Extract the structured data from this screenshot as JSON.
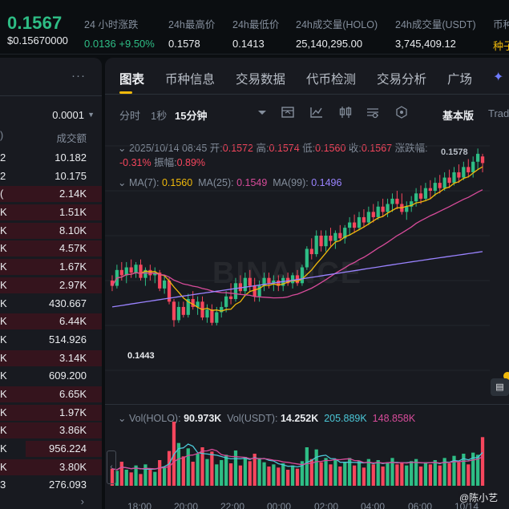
{
  "ticker": {
    "last_price": "0.1567",
    "last_price_usd": "$0.15670000",
    "change_label": "24 小时涨跌",
    "change_value": "0.0136",
    "change_pct": "+9.50%",
    "high_label": "24h最高价",
    "high_value": "0.1578",
    "low_label": "24h最低价",
    "low_value": "0.1413",
    "vol_base_label": "24h成交量(HOLO)",
    "vol_base_value": "25,140,295.00",
    "vol_quote_label": "24h成交量(USDT)",
    "vol_quote_value": "3,745,409.12",
    "seed_label": "币种",
    "seed_value": "种子"
  },
  "colors": {
    "up": "#2ebd85",
    "down": "#f6465d",
    "accent": "#f0b90b",
    "ma7": "#f0b90b",
    "ma25": "#d74b9a",
    "ma99": "#9a83ff",
    "vol_ma": "#4bc7d7"
  },
  "order_book": {
    "menu_icon": "more-dots-icon",
    "precision": "0.0001",
    "col_price": ")",
    "col_amount": "成交额",
    "rows": [
      {
        "p": "2",
        "q": "10.182",
        "side": "ask",
        "fill": 0
      },
      {
        "p": "2",
        "q": "10.175",
        "side": "ask",
        "fill": 0
      },
      {
        "p": "(",
        "q": "2.14K",
        "side": "ask",
        "fill": 1.0
      },
      {
        "p": "K",
        "q": "1.51K",
        "side": "ask",
        "fill": 1.0
      },
      {
        "p": "K",
        "q": "8.10K",
        "side": "ask",
        "fill": 1.0
      },
      {
        "p": "K",
        "q": "4.57K",
        "side": "ask",
        "fill": 1.0
      },
      {
        "p": "K",
        "q": "1.67K",
        "side": "ask",
        "fill": 1.0
      },
      {
        "p": "K",
        "q": "2.97K",
        "side": "ask",
        "fill": 1.0
      },
      {
        "p": "K",
        "q": "430.667",
        "side": "ask",
        "fill": 0.0
      },
      {
        "p": "K",
        "q": "6.44K",
        "side": "ask",
        "fill": 1.0
      },
      {
        "p": "K",
        "q": "514.926",
        "side": "ask",
        "fill": 0.0
      },
      {
        "p": "K",
        "q": "3.14K",
        "side": "ask",
        "fill": 1.0
      },
      {
        "p": "K",
        "q": "609.200",
        "side": "ask",
        "fill": 0.0
      },
      {
        "p": "K",
        "q": "6.65K",
        "side": "ask",
        "fill": 1.0
      },
      {
        "p": "K",
        "q": "1.97K",
        "side": "ask",
        "fill": 1.0
      },
      {
        "p": "K",
        "q": "3.86K",
        "side": "ask",
        "fill": 1.0
      },
      {
        "p": "K",
        "q": "956.224",
        "side": "ask",
        "fill": 0.75
      },
      {
        "p": "K",
        "q": "3.80K",
        "side": "ask",
        "fill": 1.0
      },
      {
        "p": "3",
        "q": "276.093",
        "side": "ask",
        "fill": 0.0
      }
    ]
  },
  "tabs": [
    {
      "label": "图表",
      "active": true
    },
    {
      "label": "币种信息",
      "active": false
    },
    {
      "label": "交易数据",
      "active": false
    },
    {
      "label": "代币检测",
      "active": false
    },
    {
      "label": "交易分析",
      "active": false
    },
    {
      "label": "广场",
      "active": false
    }
  ],
  "toolbar": {
    "time_label": "分时",
    "one_sec": "1秒",
    "interval": "15分钟",
    "basic": "基本版",
    "trading_view": "Trad",
    "icons": [
      "chevron-down-icon",
      "indicator-icon",
      "draw-line-icon",
      "candle-type-icon",
      "settings-sliders-icon",
      "hexagon-icon"
    ]
  },
  "ohlc": {
    "date": "2025/10/14 08:45",
    "open_label": "开:",
    "open": "0.1572",
    "high_label": "高:",
    "high": "0.1574",
    "low_label": "低:",
    "low": "0.1560",
    "close_label": "收:",
    "close": "0.1567",
    "change_label": "涨跌幅:",
    "change": "-0.31%",
    "amp_label": "振幅:",
    "amp": "0.89%"
  },
  "ma": {
    "ma7_label": "MA(7):",
    "ma7": "0.1560",
    "ma25_label": "MA(25):",
    "ma25": "0.1549",
    "ma99_label": "MA(99):",
    "ma99": "0.1496"
  },
  "volume": {
    "vol_base_label": "Vol(HOLO):",
    "vol_base": "90.973K",
    "vol_quote_label": "Vol(USDT):",
    "vol_quote": "14.252K",
    "ma5": "205.889K",
    "ma10": "148.858K"
  },
  "annotations": {
    "low": "0.1443",
    "high": "0.1578",
    "watermark": "BINANCE",
    "credit": "@陈小艺"
  },
  "time_axis": [
    "18:00",
    "20:00",
    "22:00",
    "00:00",
    "02:00",
    "04:00",
    "06:00",
    "10/14"
  ],
  "chart_data": {
    "type": "candlestick",
    "interval": "15m",
    "y_range": [
      0.141,
      0.158
    ],
    "candles": [
      [
        0.1478,
        0.1482,
        0.147,
        0.1474
      ],
      [
        0.1474,
        0.149,
        0.1472,
        0.1486
      ],
      [
        0.1486,
        0.1492,
        0.1478,
        0.1482
      ],
      [
        0.1482,
        0.1492,
        0.1476,
        0.1488
      ],
      [
        0.1488,
        0.1494,
        0.148,
        0.1484
      ],
      [
        0.1484,
        0.1492,
        0.148,
        0.149
      ],
      [
        0.149,
        0.1494,
        0.1478,
        0.148
      ],
      [
        0.148,
        0.1488,
        0.1474,
        0.1486
      ],
      [
        0.1486,
        0.149,
        0.1478,
        0.1482
      ],
      [
        0.1482,
        0.1488,
        0.1476,
        0.1484
      ],
      [
        0.1484,
        0.1486,
        0.147,
        0.1472
      ],
      [
        0.1472,
        0.1482,
        0.1468,
        0.1478
      ],
      [
        0.1478,
        0.148,
        0.146,
        0.1462
      ],
      [
        0.1462,
        0.1464,
        0.1443,
        0.1448
      ],
      [
        0.1448,
        0.1462,
        0.1446,
        0.1458
      ],
      [
        0.1458,
        0.1462,
        0.145,
        0.1452
      ],
      [
        0.1452,
        0.1468,
        0.145,
        0.1464
      ],
      [
        0.1464,
        0.147,
        0.1456,
        0.1458
      ],
      [
        0.1458,
        0.1466,
        0.1452,
        0.1462
      ],
      [
        0.1462,
        0.1466,
        0.1448,
        0.145
      ],
      [
        0.145,
        0.146,
        0.1446,
        0.1456
      ],
      [
        0.1456,
        0.146,
        0.1444,
        0.1446
      ],
      [
        0.1446,
        0.1458,
        0.1444,
        0.1454
      ],
      [
        0.1454,
        0.1462,
        0.145,
        0.1458
      ],
      [
        0.1458,
        0.147,
        0.1454,
        0.1466
      ],
      [
        0.1466,
        0.1476,
        0.146,
        0.1464
      ],
      [
        0.1464,
        0.148,
        0.1462,
        0.1476
      ],
      [
        0.1476,
        0.1482,
        0.1468,
        0.147
      ],
      [
        0.147,
        0.1484,
        0.1466,
        0.148
      ],
      [
        0.148,
        0.1486,
        0.147,
        0.1474
      ],
      [
        0.1474,
        0.148,
        0.1462,
        0.1466
      ],
      [
        0.1466,
        0.1478,
        0.1462,
        0.1474
      ],
      [
        0.1474,
        0.1484,
        0.147,
        0.148
      ],
      [
        0.148,
        0.1484,
        0.1472,
        0.1476
      ],
      [
        0.1476,
        0.1482,
        0.147,
        0.1478
      ],
      [
        0.1478,
        0.1482,
        0.147,
        0.1474
      ],
      [
        0.1474,
        0.1482,
        0.147,
        0.148
      ],
      [
        0.148,
        0.1484,
        0.1474,
        0.1476
      ],
      [
        0.1476,
        0.1484,
        0.1472,
        0.1482
      ],
      [
        0.1482,
        0.1486,
        0.1474,
        0.1476
      ],
      [
        0.1476,
        0.149,
        0.1474,
        0.1488
      ],
      [
        0.1488,
        0.1504,
        0.1486,
        0.1502
      ],
      [
        0.1502,
        0.151,
        0.1494,
        0.1498
      ],
      [
        0.1498,
        0.1516,
        0.1496,
        0.1512
      ],
      [
        0.1512,
        0.1516,
        0.15,
        0.1504
      ],
      [
        0.1504,
        0.1516,
        0.15,
        0.1512
      ],
      [
        0.1512,
        0.1518,
        0.1504,
        0.1508
      ],
      [
        0.1508,
        0.1516,
        0.1502,
        0.1514
      ],
      [
        0.1514,
        0.152,
        0.1508,
        0.151
      ],
      [
        0.151,
        0.152,
        0.1506,
        0.1518
      ],
      [
        0.1518,
        0.1526,
        0.1512,
        0.1522
      ],
      [
        0.1522,
        0.1528,
        0.1514,
        0.1518
      ],
      [
        0.1518,
        0.153,
        0.1516,
        0.1526
      ],
      [
        0.1526,
        0.1532,
        0.1518,
        0.1522
      ],
      [
        0.1522,
        0.1534,
        0.152,
        0.153
      ],
      [
        0.153,
        0.1536,
        0.1522,
        0.1526
      ],
      [
        0.1526,
        0.1538,
        0.1524,
        0.1534
      ],
      [
        0.1534,
        0.154,
        0.1526,
        0.153
      ],
      [
        0.153,
        0.154,
        0.1526,
        0.1536
      ],
      [
        0.1536,
        0.1544,
        0.153,
        0.154
      ],
      [
        0.154,
        0.1546,
        0.1532,
        0.1536
      ],
      [
        0.1536,
        0.1544,
        0.1528,
        0.153
      ],
      [
        0.153,
        0.1538,
        0.1524,
        0.1534
      ],
      [
        0.1534,
        0.1542,
        0.153,
        0.1538
      ],
      [
        0.1538,
        0.1548,
        0.1534,
        0.1544
      ],
      [
        0.1544,
        0.155,
        0.1536,
        0.154
      ],
      [
        0.154,
        0.1552,
        0.1538,
        0.1548
      ],
      [
        0.1548,
        0.1554,
        0.154,
        0.1546
      ],
      [
        0.1546,
        0.1556,
        0.1542,
        0.1552
      ],
      [
        0.1552,
        0.1558,
        0.1544,
        0.1548
      ],
      [
        0.1548,
        0.156,
        0.1546,
        0.1556
      ],
      [
        0.1556,
        0.1562,
        0.1548,
        0.1552
      ],
      [
        0.1552,
        0.1564,
        0.155,
        0.156
      ],
      [
        0.156,
        0.1566,
        0.1552,
        0.1556
      ],
      [
        0.1556,
        0.1568,
        0.1554,
        0.1564
      ],
      [
        0.1564,
        0.157,
        0.1556,
        0.156
      ],
      [
        0.156,
        0.1572,
        0.1556,
        0.1568
      ],
      [
        0.1568,
        0.1578,
        0.1562,
        0.1574
      ],
      [
        0.1572,
        0.1574,
        0.156,
        0.1567
      ]
    ],
    "volume": [
      32,
      28,
      45,
      30,
      25,
      38,
      22,
      40,
      30,
      26,
      48,
      35,
      65,
      120,
      80,
      55,
      70,
      45,
      60,
      72,
      50,
      64,
      40,
      48,
      58,
      42,
      66,
      38,
      54,
      46,
      60,
      52,
      44,
      36,
      40,
      34,
      42,
      30,
      38,
      32,
      46,
      72,
      50,
      68,
      44,
      52,
      40,
      48,
      36,
      44,
      52,
      38,
      46,
      34,
      50,
      40,
      48,
      36,
      42,
      52,
      40,
      44,
      38,
      46,
      50,
      36,
      44,
      40,
      48,
      38,
      52,
      42,
      56,
      44,
      60,
      40,
      62,
      58,
      91
    ]
  }
}
